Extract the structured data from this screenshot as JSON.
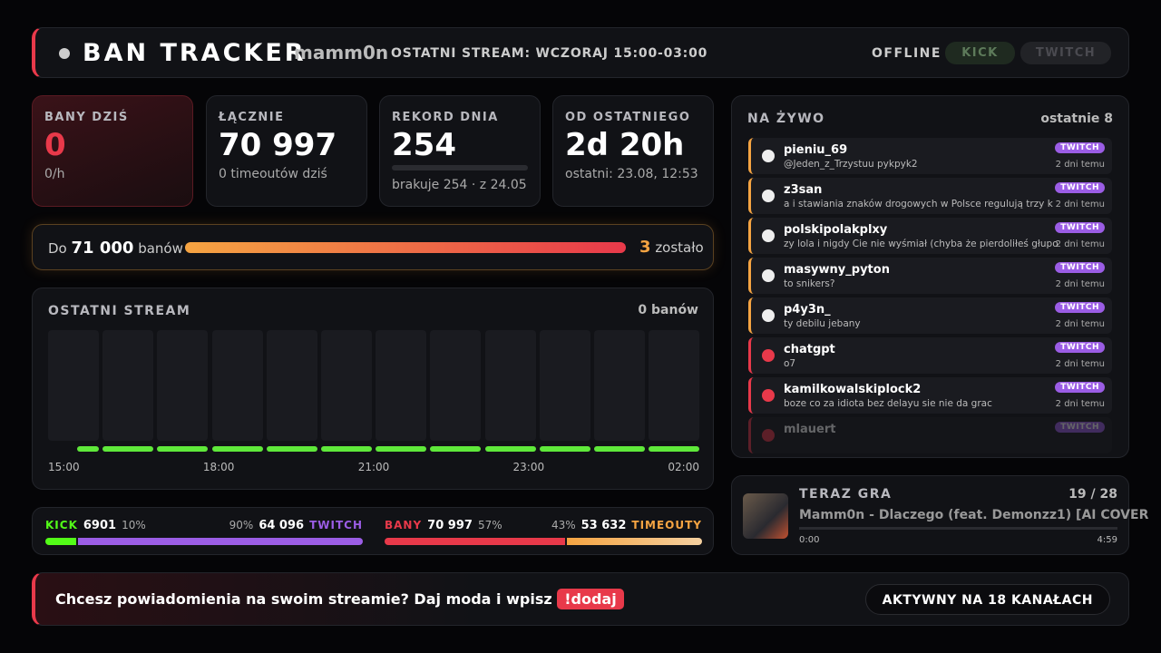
{
  "header": {
    "title": "BAN TRACKER",
    "channel": "mamm0n",
    "last_stream": "OSTATNI STREAM: WCZORAJ 15:00-03:00",
    "status": "OFFLINE",
    "platforms": [
      "KICK",
      "TWITCH"
    ]
  },
  "stats": [
    {
      "label": "BANY DZIŚ",
      "value": "0",
      "sub": "0/h"
    },
    {
      "label": "ŁĄCZNIE",
      "value": "70 997",
      "sub": "0 timeoutów dziś"
    },
    {
      "label": "REKORD DNIA",
      "value": "254",
      "sub": "brakuje 254 · z 24.05"
    },
    {
      "label": "OD OSTATNIEGO",
      "value": "2d 20h",
      "sub": "ostatni: 23.08, 12:53"
    }
  ],
  "goal": {
    "prefix": "Do",
    "target": "71 000",
    "suffix": "banów",
    "remaining": "3",
    "remaining_label": "zostało"
  },
  "stream": {
    "title": "OSTATNI STREAM",
    "total": "0 banów",
    "x_labels": [
      "15:00",
      "18:00",
      "21:00",
      "23:00",
      "02:00"
    ]
  },
  "splits": [
    {
      "left_name": "KICK",
      "left_count": "6901",
      "left_pct": {
        "value": 10,
        "label": "10%"
      },
      "right_pct": {
        "value": 90,
        "label": "90%"
      },
      "right_count": "64 096",
      "right_name": "TWITCH"
    },
    {
      "left_name": "BANY",
      "left_count": "70 997",
      "left_pct": {
        "value": 57,
        "label": "57%"
      },
      "right_pct": {
        "value": 43,
        "label": "43%"
      },
      "right_count": "53 632",
      "right_name": "TIMEOUTY"
    }
  ],
  "live": {
    "title": "NA ŻYWO",
    "count": "ostatnie 8",
    "items": [
      {
        "user": "pieniu_69",
        "message": "@Jeden_z_Trzystuu pykpyk2",
        "platform": "TWITCH",
        "time": "2 dni temu",
        "kind": "timeout"
      },
      {
        "user": "z3san",
        "message": "a i stawiania znaków drogowych w Polsce regulują trzy k",
        "platform": "TWITCH",
        "time": "2 dni temu",
        "kind": "timeout"
      },
      {
        "user": "polskipolakplxy",
        "message": "zy lola i nigdy Cie nie wyśmiał (chyba że pierdoliłeś głupo",
        "platform": "TWITCH",
        "time": "2 dni temu",
        "kind": "timeout"
      },
      {
        "user": "masywny_pyton",
        "message": "to snikers?",
        "platform": "TWITCH",
        "time": "2 dni temu",
        "kind": "timeout"
      },
      {
        "user": "p4y3n_",
        "message": "ty debilu jebany",
        "platform": "TWITCH",
        "time": "2 dni temu",
        "kind": "timeout"
      },
      {
        "user": "chatgpt",
        "message": "o7",
        "platform": "TWITCH",
        "time": "2 dni temu",
        "kind": "ban"
      },
      {
        "user": "kamilkowalskiplock2",
        "message": "boze co za idiota bez delayu sie nie da grac",
        "platform": "TWITCH",
        "time": "2 dni temu",
        "kind": "ban"
      },
      {
        "user": "mlauert",
        "platform": "TWITCH",
        "kind": "ban"
      }
    ]
  },
  "now_playing": {
    "title": "TERAZ GRA",
    "position": "19 / 28",
    "song": "Mamm0n - Dlaczego (feat. Demonzz1) [AI COVER",
    "elapsed": "0:00",
    "duration": "4:59"
  },
  "footer": {
    "text": "Chcesz powiadomienia na swoim streamie? Daj moda i wpisz",
    "command": "!dodaj",
    "channels": "AKTYWNY NA 18 KANAŁACH"
  }
}
